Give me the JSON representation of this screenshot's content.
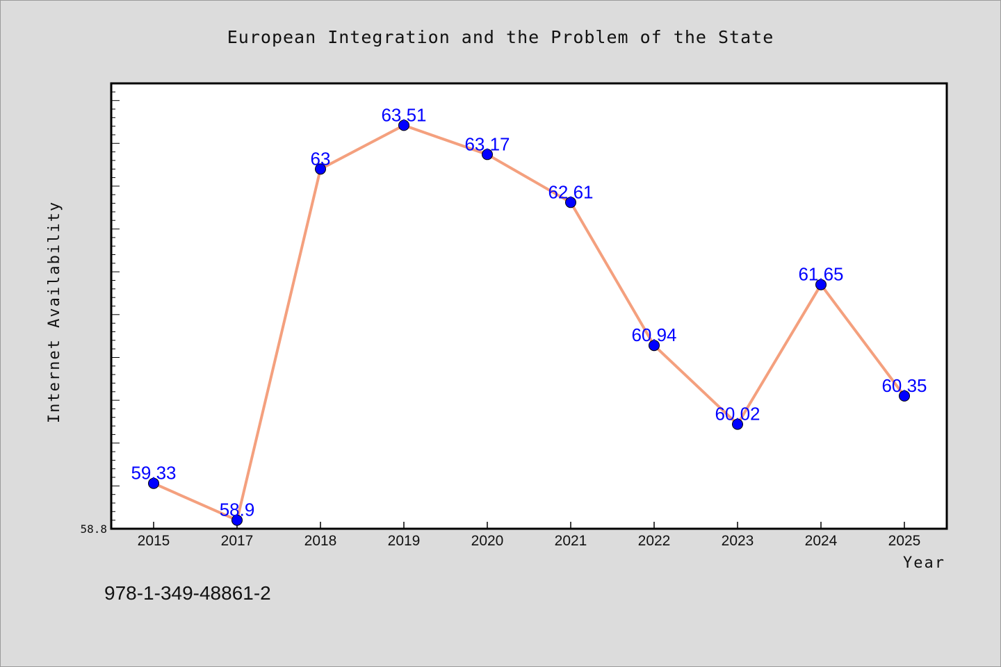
{
  "title": "European Integration and the Problem of the State",
  "footer": "978-1-349-48861-2",
  "colors": {
    "background": "#dcdcdc",
    "plot_background": "#ffffff",
    "line": "#f4a07e",
    "marker": "#0000ff",
    "data_label": "#0000ff"
  },
  "chart_data": {
    "type": "line",
    "xlabel": "Year",
    "ylabel": "Internet Availability",
    "categories": [
      "2015",
      "2017",
      "2018",
      "2019",
      "2020",
      "2021",
      "2022",
      "2023",
      "2024",
      "2025"
    ],
    "values": [
      59.33,
      58.9,
      63,
      63.51,
      63.17,
      62.61,
      60.94,
      60.02,
      61.65,
      60.35
    ],
    "data_labels": [
      "59.33",
      "58.9",
      "63",
      "63.51",
      "63.17",
      "62.61",
      "60.94",
      "60.02",
      "61.65",
      "60.35"
    ],
    "yticks": [
      "58.8"
    ],
    "ylim": [
      58.8,
      64.0
    ],
    "grid": false,
    "legend": "none"
  }
}
